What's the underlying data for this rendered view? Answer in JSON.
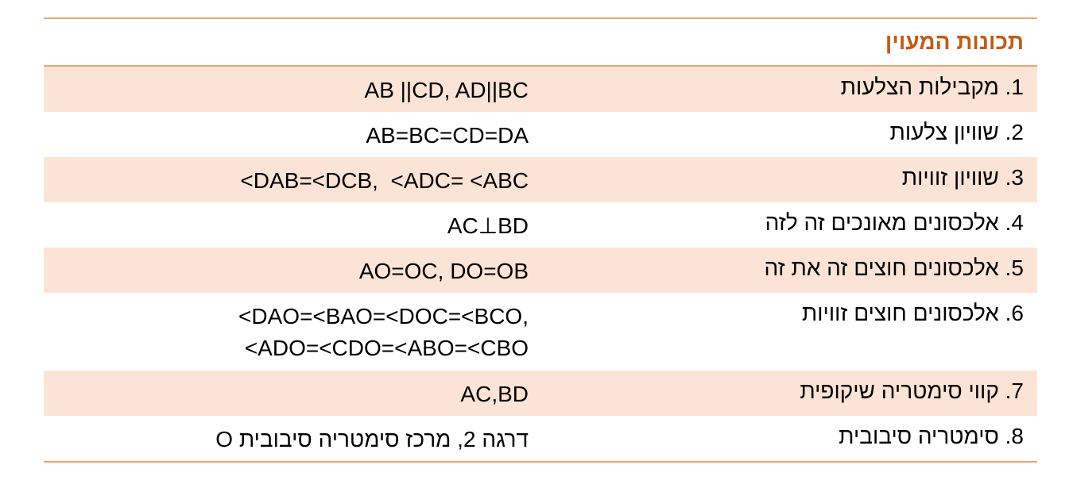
{
  "header": {
    "title": "תכונות המעוין"
  },
  "table": {
    "rows": [
      [
        "1. מקבילות הצלעות",
        [
          "AB ||CD, AD||BC"
        ]
      ],
      [
        "2. שוויון צלעות",
        [
          "AB=BC=CD=DA"
        ]
      ],
      [
        "3. שוויון זוויות",
        [
          "<DAB=<DCB,  <ADC= <ABC"
        ]
      ],
      [
        "4. אלכסונים מאונכים זה לזה",
        [
          "AC⊥BD"
        ]
      ],
      [
        "5. אלכסונים חוצים זה את זה",
        [
          "AO=OC, DO=OB"
        ]
      ],
      [
        "6. אלכסונים חוצים זוויות",
        [
          "<DAO=<BAO=<DOC=<BCO,",
          "<ADO=<CDO=<ABO=<CBO"
        ]
      ],
      [
        "7. קווי סימטריה שיקופית",
        [
          "AC,BD"
        ]
      ],
      [
        "8. סימטריה סיבובית",
        [
          "דרגה 2, מרכז סימטריה סיבובית O"
        ]
      ]
    ]
  }
}
